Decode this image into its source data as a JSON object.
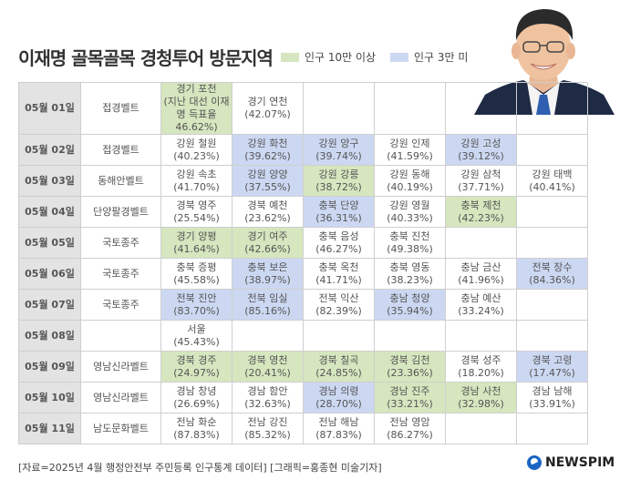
{
  "title": "이재명 골목골목 경청투어 방문지역",
  "legend": [
    {
      "label": "인구 10만 이상",
      "color": "#d6e6bf"
    },
    {
      "label": "인구 3만 미만",
      "color": "#ccd8f2"
    }
  ],
  "rows": [
    {
      "date": "05월 01일",
      "belt": "접경벨트",
      "cells": [
        {
          "name": "경기 포천",
          "pct": "(지난 대선 이재명 득표율 46.62%)",
          "cat": "g"
        },
        {
          "name": "경기 연천",
          "pct": "(42.07%)",
          "cat": ""
        }
      ]
    },
    {
      "date": "05월 02일",
      "belt": "접경벨트",
      "cells": [
        {
          "name": "강원 철원",
          "pct": "(40.23%)",
          "cat": ""
        },
        {
          "name": "강원 화천",
          "pct": "(39.62%)",
          "cat": "b"
        },
        {
          "name": "강원 양구",
          "pct": "(39.74%)",
          "cat": "b"
        },
        {
          "name": "강원 인제",
          "pct": "(41.59%)",
          "cat": ""
        },
        {
          "name": "강원 고성",
          "pct": "(39.12%)",
          "cat": "b"
        }
      ]
    },
    {
      "date": "05월 03일",
      "belt": "동해안벨트",
      "cells": [
        {
          "name": "강원 속초",
          "pct": "(41.70%)",
          "cat": ""
        },
        {
          "name": "강원 양양",
          "pct": "(37.55%)",
          "cat": "b"
        },
        {
          "name": "강원 강릉",
          "pct": "(38.72%)",
          "cat": "g"
        },
        {
          "name": "강원 동해",
          "pct": "(40.19%)",
          "cat": ""
        },
        {
          "name": "강원 삼척",
          "pct": "(37.71%)",
          "cat": ""
        },
        {
          "name": "강원 태백",
          "pct": "(40.41%)",
          "cat": ""
        }
      ]
    },
    {
      "date": "05월 04일",
      "belt": "단양팔경벨트",
      "cells": [
        {
          "name": "경북 영주",
          "pct": "(25.54%)",
          "cat": ""
        },
        {
          "name": "경북 예천",
          "pct": "(23.62%)",
          "cat": ""
        },
        {
          "name": "충북 단양",
          "pct": "(36.31%)",
          "cat": "b"
        },
        {
          "name": "강원 영월",
          "pct": "(40.33%)",
          "cat": ""
        },
        {
          "name": "충북 제천",
          "pct": "(42.23%)",
          "cat": "g"
        }
      ]
    },
    {
      "date": "05월 05일",
      "belt": "국토종주",
      "cells": [
        {
          "name": "경기 양평",
          "pct": "(41.64%)",
          "cat": "g"
        },
        {
          "name": "경기 여주",
          "pct": "(42.66%)",
          "cat": "g"
        },
        {
          "name": "충북 음성",
          "pct": "(46.27%)",
          "cat": ""
        },
        {
          "name": "충북 진천",
          "pct": "(49.38%)",
          "cat": ""
        }
      ]
    },
    {
      "date": "05월 06일",
      "belt": "국토종주",
      "cells": [
        {
          "name": "충북 증평",
          "pct": "(45.58%)",
          "cat": ""
        },
        {
          "name": "충북 보은",
          "pct": "(38.97%)",
          "cat": "b"
        },
        {
          "name": "충북 옥천",
          "pct": "(41.71%)",
          "cat": ""
        },
        {
          "name": "충북 영동",
          "pct": "(38.23%)",
          "cat": ""
        },
        {
          "name": "충남 금산",
          "pct": "(41.96%)",
          "cat": ""
        },
        {
          "name": "전북 장수",
          "pct": "(84.36%)",
          "cat": "b"
        }
      ]
    },
    {
      "date": "05월 07일",
      "belt": "국토종주",
      "cells": [
        {
          "name": "전북 진안",
          "pct": "(83.70%)",
          "cat": "b"
        },
        {
          "name": "전북 임실",
          "pct": "(85.16%)",
          "cat": "b"
        },
        {
          "name": "전북 익산",
          "pct": "(82.39%)",
          "cat": ""
        },
        {
          "name": "충남 청양",
          "pct": "(35.94%)",
          "cat": "b"
        },
        {
          "name": "충남 예산",
          "pct": "(33.24%)",
          "cat": ""
        }
      ]
    },
    {
      "date": "05월 08일",
      "belt": "",
      "cells": [
        {
          "name": "서울",
          "pct": "(45.43%)",
          "cat": ""
        }
      ]
    },
    {
      "date": "05월 09일",
      "belt": "영남신라벨트",
      "cells": [
        {
          "name": "경북 경주",
          "pct": "(24.97%)",
          "cat": "g"
        },
        {
          "name": "경북 영천",
          "pct": "(20.41%)",
          "cat": "g"
        },
        {
          "name": "경북 칠곡",
          "pct": "(24.85%)",
          "cat": "g"
        },
        {
          "name": "경북 김천",
          "pct": "(23.36%)",
          "cat": "g"
        },
        {
          "name": "경북 성주",
          "pct": "(18.20%)",
          "cat": ""
        },
        {
          "name": "경북 고령",
          "pct": "(17.47%)",
          "cat": "b"
        }
      ]
    },
    {
      "date": "05월 10일",
      "belt": "영남신라벨트",
      "cells": [
        {
          "name": "경남 창녕",
          "pct": "(26.69%)",
          "cat": ""
        },
        {
          "name": "경남 함안",
          "pct": "(32.63%)",
          "cat": ""
        },
        {
          "name": "경남 의령",
          "pct": "(28.70%)",
          "cat": "b"
        },
        {
          "name": "경남 진주",
          "pct": "(33.21%)",
          "cat": "g"
        },
        {
          "name": "경남 사천",
          "pct": "(32.98%)",
          "cat": "g"
        },
        {
          "name": "경남 남해",
          "pct": "(33.91%)",
          "cat": ""
        }
      ]
    },
    {
      "date": "05월 11일",
      "belt": "남도문화벨트",
      "cells": [
        {
          "name": "전남 화순",
          "pct": "(87.83%)",
          "cat": ""
        },
        {
          "name": "전남 강진",
          "pct": "(85.32%)",
          "cat": ""
        },
        {
          "name": "전남 해남",
          "pct": "(87.83%)",
          "cat": ""
        },
        {
          "name": "전남 영암",
          "pct": "(86.27%)",
          "cat": ""
        }
      ]
    }
  ],
  "footer": "[자료=2025년 4월 행정안전부 주민등록 인구통계 데이터] [그래픽=홍종현 미술기자]",
  "brand": "NEWSPIM"
}
